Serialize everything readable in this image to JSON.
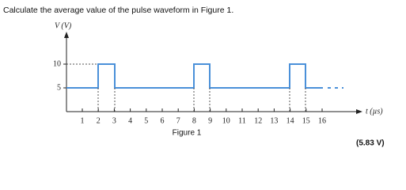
{
  "question": "Calculate the average value of the pulse waveform in Figure 1.",
  "figure": {
    "y_label": "V (V)",
    "x_label": "t (µs)",
    "y_ticks": [
      "10",
      "5"
    ],
    "x_ticks": [
      "1",
      "2",
      "3",
      "4",
      "5",
      "6",
      "7",
      "8",
      "9",
      "10",
      "11",
      "12",
      "13",
      "14",
      "15",
      "16"
    ],
    "caption": "Figure 1"
  },
  "answer": "(5.83 V)"
}
